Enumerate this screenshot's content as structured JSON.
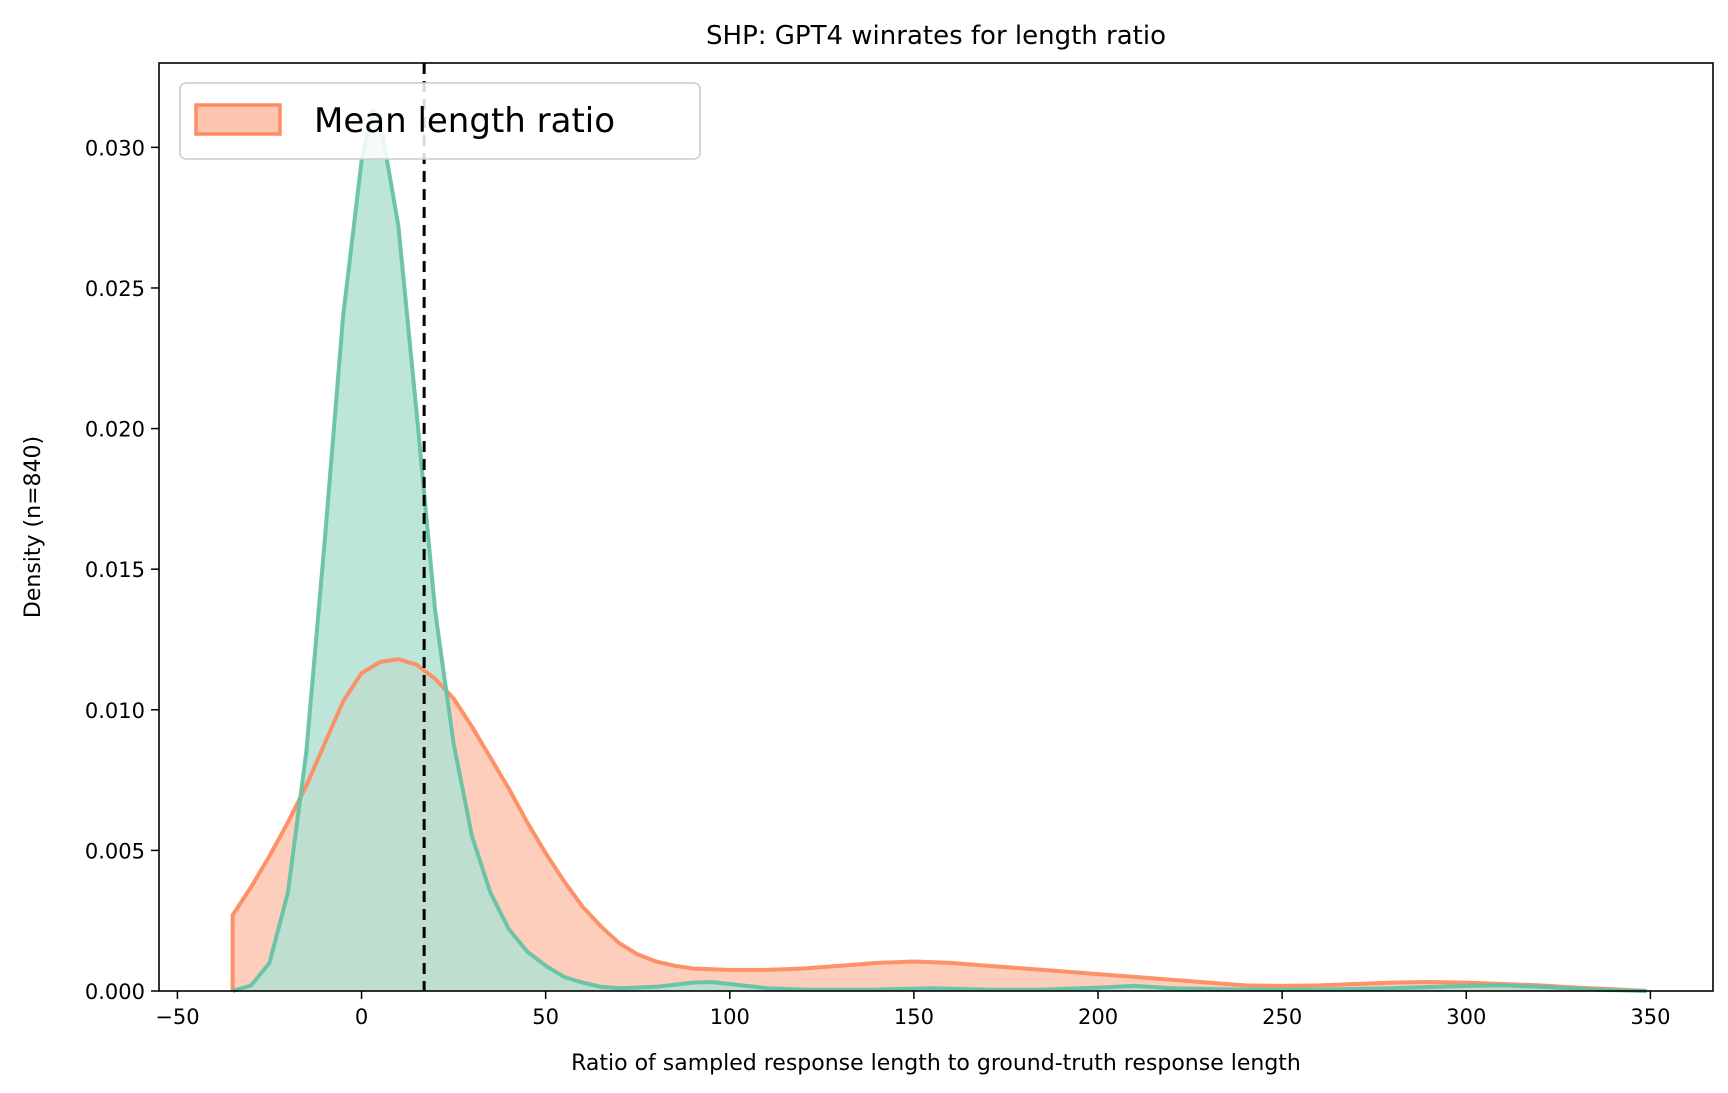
{
  "chart_data": {
    "type": "area",
    "title": "SHP: GPT4 winrates for length ratio",
    "xlabel": "Ratio of sampled response length to ground-truth response length",
    "ylabel": "Density (n=840)",
    "xlim": [
      -55,
      367
    ],
    "ylim": [
      0,
      0.033
    ],
    "x_ticks": [
      -50,
      0,
      50,
      100,
      150,
      200,
      250,
      300,
      350
    ],
    "x_tick_labels": [
      "−50",
      "0",
      "50",
      "100",
      "150",
      "200",
      "250",
      "300",
      "350"
    ],
    "y_ticks": [
      0,
      0.005,
      0.01,
      0.015,
      0.02,
      0.025,
      0.03
    ],
    "y_tick_labels": [
      "0.000",
      "0.005",
      "0.010",
      "0.015",
      "0.020",
      "0.025",
      "0.030"
    ],
    "grid": false,
    "legend": {
      "position": "top-left",
      "entries": [
        "Mean length ratio"
      ]
    },
    "vline": {
      "x": 17,
      "style": "dashed",
      "color": "#000000"
    },
    "series": [
      {
        "name": "Mean length ratio",
        "color": "#fc8d62",
        "fill": "#fdc6b0",
        "points": [
          [
            -35,
            0
          ],
          [
            -35,
            0.0027
          ],
          [
            -30,
            0.0037
          ],
          [
            -25,
            0.0048
          ],
          [
            -20,
            0.006
          ],
          [
            -15,
            0.0073
          ],
          [
            -10,
            0.0088
          ],
          [
            -5,
            0.0103
          ],
          [
            0,
            0.0113
          ],
          [
            5,
            0.0117
          ],
          [
            10,
            0.0118
          ],
          [
            15,
            0.0116
          ],
          [
            20,
            0.0111
          ],
          [
            25,
            0.0104
          ],
          [
            30,
            0.0094
          ],
          [
            35,
            0.0083
          ],
          [
            40,
            0.0072
          ],
          [
            45,
            0.006
          ],
          [
            50,
            0.0049
          ],
          [
            55,
            0.0039
          ],
          [
            60,
            0.003
          ],
          [
            65,
            0.0023
          ],
          [
            70,
            0.0017
          ],
          [
            75,
            0.0013
          ],
          [
            80,
            0.00105
          ],
          [
            85,
            0.0009
          ],
          [
            90,
            0.0008
          ],
          [
            100,
            0.00075
          ],
          [
            110,
            0.00075
          ],
          [
            120,
            0.0008
          ],
          [
            130,
            0.0009
          ],
          [
            140,
            0.001
          ],
          [
            150,
            0.00105
          ],
          [
            160,
            0.001
          ],
          [
            170,
            0.0009
          ],
          [
            180,
            0.0008
          ],
          [
            190,
            0.0007
          ],
          [
            200,
            0.0006
          ],
          [
            210,
            0.0005
          ],
          [
            220,
            0.0004
          ],
          [
            230,
            0.0003
          ],
          [
            240,
            0.0002
          ],
          [
            250,
            0.00018
          ],
          [
            260,
            0.0002
          ],
          [
            270,
            0.00025
          ],
          [
            280,
            0.0003
          ],
          [
            290,
            0.00032
          ],
          [
            300,
            0.0003
          ],
          [
            310,
            0.00025
          ],
          [
            320,
            0.0002
          ],
          [
            330,
            0.00012
          ],
          [
            340,
            6e-05
          ],
          [
            349,
            0
          ]
        ]
      },
      {
        "color": "#66c2a5",
        "fill": "#b3e1d2",
        "points": [
          [
            -35,
            0
          ],
          [
            -30,
            0.0002
          ],
          [
            -25,
            0.001
          ],
          [
            -20,
            0.0035
          ],
          [
            -15,
            0.0085
          ],
          [
            -10,
            0.016
          ],
          [
            -5,
            0.024
          ],
          [
            0,
            0.0295
          ],
          [
            3,
            0.0313
          ],
          [
            5,
            0.031
          ],
          [
            10,
            0.0272
          ],
          [
            15,
            0.0205
          ],
          [
            20,
            0.0135
          ],
          [
            25,
            0.0088
          ],
          [
            30,
            0.0055
          ],
          [
            35,
            0.0035
          ],
          [
            40,
            0.0022
          ],
          [
            45,
            0.0014
          ],
          [
            50,
            0.0009
          ],
          [
            55,
            0.0005
          ],
          [
            60,
            0.0003
          ],
          [
            65,
            0.00015
          ],
          [
            70,
            0.0001
          ],
          [
            80,
            0.00015
          ],
          [
            90,
            0.0003
          ],
          [
            95,
            0.00032
          ],
          [
            100,
            0.00025
          ],
          [
            110,
            0.0001
          ],
          [
            120,
            5e-05
          ],
          [
            140,
            5e-05
          ],
          [
            155,
            0.0001
          ],
          [
            170,
            5e-05
          ],
          [
            185,
            5e-05
          ],
          [
            200,
            0.00012
          ],
          [
            210,
            0.00018
          ],
          [
            220,
            0.0001
          ],
          [
            240,
            5e-05
          ],
          [
            260,
            5e-05
          ],
          [
            280,
            0.0001
          ],
          [
            300,
            0.00018
          ],
          [
            310,
            0.0002
          ],
          [
            320,
            0.00015
          ],
          [
            335,
            5e-05
          ],
          [
            349,
            0
          ]
        ]
      }
    ]
  }
}
